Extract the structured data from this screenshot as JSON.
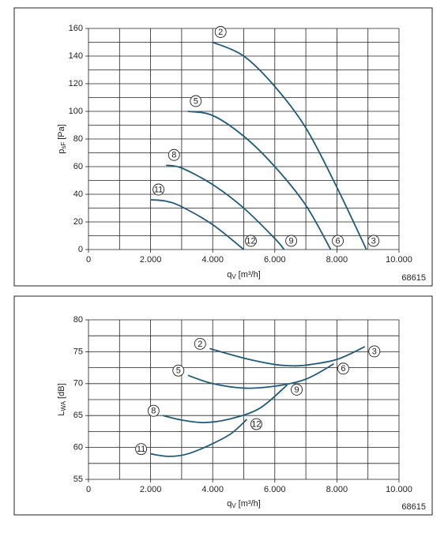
{
  "chart_data": [
    {
      "type": "line",
      "ylabel": {
        "text": "p",
        "sub": "sF",
        "unit": "[Pa]"
      },
      "xlabel": {
        "text": "q",
        "sub": "V",
        "unit": "[m³/h]"
      },
      "code": "68615",
      "xlim": [
        0,
        10000
      ],
      "ylim": [
        0,
        160
      ],
      "xticks": [
        0,
        {
          "value": 2000,
          "label": "2.000"
        },
        {
          "value": 4000,
          "label": "4.000"
        },
        {
          "value": 6000,
          "label": "6.000"
        },
        {
          "value": 8000,
          "label": "8.000"
        },
        {
          "value": 10000,
          "label": "10.000"
        }
      ],
      "yticks": [
        0,
        20,
        40,
        60,
        80,
        100,
        120,
        140,
        160
      ],
      "xgrid": [
        0,
        1000,
        2000,
        3000,
        4000,
        5000,
        6000,
        7000,
        8000,
        9000,
        10000
      ],
      "ygrid": [
        0,
        10,
        20,
        30,
        40,
        50,
        60,
        70,
        80,
        90,
        100,
        110,
        120,
        130,
        140,
        150,
        160
      ],
      "series": [
        {
          "name": "2",
          "end_name": "3",
          "color": "#1f5b7c",
          "x": [
            4000,
            5000,
            6000,
            7000,
            8000,
            8950
          ],
          "values": [
            150,
            140,
            118,
            88,
            45,
            0
          ]
        },
        {
          "name": "5",
          "end_name": "6",
          "color": "#1f5b7c",
          "x": [
            3200,
            4000,
            5000,
            6000,
            7000,
            7800
          ],
          "values": [
            100,
            97,
            82,
            60,
            32,
            0
          ]
        },
        {
          "name": "8",
          "end_name": "9",
          "color": "#1f5b7c",
          "x": [
            2500,
            3000,
            4000,
            5000,
            6000,
            6300
          ],
          "values": [
            61,
            59,
            47,
            30,
            8,
            0
          ]
        },
        {
          "name": "11",
          "end_name": "12",
          "color": "#1f5b7c",
          "x": [
            2000,
            2500,
            3000,
            4000,
            5000
          ],
          "values": [
            36,
            35,
            31,
            18,
            0
          ]
        }
      ]
    },
    {
      "type": "line",
      "ylabel": {
        "text": "L",
        "sub": "WA",
        "unit": "[dB]"
      },
      "xlabel": {
        "text": "q",
        "sub": "V",
        "unit": "[m³/h]"
      },
      "code": "68615",
      "xlim": [
        0,
        10000
      ],
      "ylim": [
        55,
        80
      ],
      "xticks": [
        0,
        {
          "value": 2000,
          "label": "2.000"
        },
        {
          "value": 4000,
          "label": "4.000"
        },
        {
          "value": 6000,
          "label": "6.000"
        },
        {
          "value": 8000,
          "label": "8.000"
        },
        {
          "value": 10000,
          "label": "10.000"
        }
      ],
      "yticks": [
        55,
        60,
        65,
        70,
        75,
        80
      ],
      "xgrid": [
        0,
        1000,
        2000,
        3000,
        4000,
        5000,
        6000,
        7000,
        8000,
        9000,
        10000
      ],
      "ygrid": [
        55,
        57.5,
        60,
        62.5,
        65,
        67.5,
        70,
        72.5,
        75,
        77.5,
        80
      ],
      "series": [
        {
          "name": "2",
          "end_name": "3",
          "color": "#1f5b7c",
          "x": [
            3900,
            5000,
            6000,
            6500,
            7000,
            8000,
            8900
          ],
          "values": [
            75.5,
            74,
            73,
            72.8,
            72.9,
            73.8,
            75.8
          ]
        },
        {
          "name": "5",
          "end_name": "6",
          "color": "#1f5b7c",
          "x": [
            3200,
            4000,
            5000,
            6000,
            7000,
            7900
          ],
          "values": [
            71.3,
            70,
            69.3,
            69.6,
            70.7,
            73.1
          ]
        },
        {
          "name": "8",
          "end_name": "9",
          "color": "#1f5b7c",
          "x": [
            2400,
            3000,
            3700,
            4500,
            5500,
            6400
          ],
          "values": [
            65,
            64.3,
            63.9,
            64.4,
            66.1,
            69.8
          ]
        },
        {
          "name": "11",
          "end_name": "12",
          "color": "#1f5b7c",
          "x": [
            2000,
            2600,
            3200,
            4000,
            4600,
            5100
          ],
          "values": [
            59,
            58.6,
            59,
            60.6,
            62.2,
            64.4
          ]
        }
      ]
    }
  ]
}
